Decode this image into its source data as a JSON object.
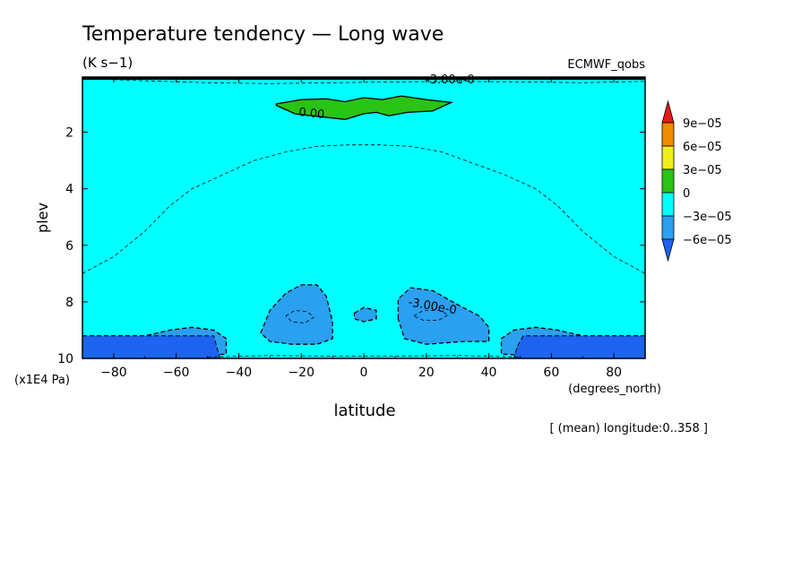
{
  "chart_data": {
    "type": "contour",
    "title": "Temperature tendency — Long wave",
    "units": "(K s−1)",
    "dataset": "ECMWF_qobs",
    "xlabel": "latitude",
    "x_units": "(degrees_north)",
    "ylabel": "plev",
    "y_units": "(x1E4 Pa)",
    "footnote": "[ (mean) longitude:0..358 ]",
    "xlim": [
      -90,
      90
    ],
    "ylim": [
      0.05,
      10
    ],
    "y_inverted": true,
    "x_ticks": [
      {
        "v": -80,
        "label": "−80"
      },
      {
        "v": -60,
        "label": "−60"
      },
      {
        "v": -40,
        "label": "−40"
      },
      {
        "v": -20,
        "label": "−20"
      },
      {
        "v": 0,
        "label": "0"
      },
      {
        "v": 20,
        "label": "20"
      },
      {
        "v": 40,
        "label": "40"
      },
      {
        "v": 60,
        "label": "60"
      },
      {
        "v": 80,
        "label": "80"
      }
    ],
    "y_ticks": [
      {
        "v": 2,
        "label": "2"
      },
      {
        "v": 4,
        "label": "4"
      },
      {
        "v": 6,
        "label": "6"
      },
      {
        "v": 8,
        "label": "8"
      },
      {
        "v": 10,
        "label": "10"
      }
    ],
    "colorbar": {
      "levels": [
        {
          "label": "9e−05",
          "value": 9e-05
        },
        {
          "label": "6e−05",
          "value": 6e-05
        },
        {
          "label": "3e−05",
          "value": 3e-05
        },
        {
          "label": "0",
          "value": 0
        },
        {
          "label": "−3e−05",
          "value": -3e-05
        },
        {
          "label": "−6e−05",
          "value": -6e-05
        }
      ],
      "colors": {
        "above_9e-05": "#e8191c",
        "6e-05_to_9e-05": "#f08c00",
        "3e-05_to_6e-05": "#f0ee1a",
        "0_to_3e-05": "#29c416",
        "-3e-05_to_0": "#00ffff",
        "-6e-05_to_-3e-05": "#2aa0f0",
        "below_-6e-05": "#1e64f0"
      }
    },
    "contour_labels": [
      "-3.00e-0",
      "0.00",
      "-3.00e-0"
    ],
    "regions": [
      {
        "level": "0_to_3e-05",
        "points": [
          [
            -28,
            1.0
          ],
          [
            -20,
            0.85
          ],
          [
            -12,
            0.82
          ],
          [
            -6,
            0.92
          ],
          [
            0,
            0.78
          ],
          [
            6,
            0.85
          ],
          [
            12,
            0.72
          ],
          [
            20,
            0.85
          ],
          [
            28,
            0.95
          ],
          [
            22,
            1.25
          ],
          [
            14,
            1.3
          ],
          [
            8,
            1.42
          ],
          [
            4,
            1.3
          ],
          [
            0,
            1.35
          ],
          [
            -6,
            1.55
          ],
          [
            -14,
            1.45
          ],
          [
            -22,
            1.35
          ],
          [
            -28,
            1.05
          ]
        ]
      },
      {
        "level": "-6e-05_to_-3e-05",
        "points": [
          [
            -33,
            9.1
          ],
          [
            -30,
            8.3
          ],
          [
            -25,
            7.7
          ],
          [
            -20,
            7.4
          ],
          [
            -15,
            7.4
          ],
          [
            -12,
            7.8
          ],
          [
            -10,
            8.7
          ],
          [
            -10,
            9.3
          ],
          [
            -15,
            9.5
          ],
          [
            -23,
            9.5
          ],
          [
            -30,
            9.4
          ]
        ]
      },
      {
        "level": "-6e-05_to_-3e-05",
        "points": [
          [
            11,
            8.6
          ],
          [
            11,
            7.9
          ],
          [
            15,
            7.5
          ],
          [
            22,
            7.6
          ],
          [
            30,
            8.1
          ],
          [
            37,
            8.5
          ],
          [
            40,
            8.9
          ],
          [
            40,
            9.4
          ],
          [
            32,
            9.4
          ],
          [
            20,
            9.5
          ],
          [
            13,
            9.3
          ]
        ]
      },
      {
        "level": "-6e-05_to_-3e-05",
        "points": [
          [
            -3,
            8.4
          ],
          [
            0,
            8.2
          ],
          [
            4,
            8.3
          ],
          [
            4,
            8.6
          ],
          [
            0,
            8.7
          ],
          [
            -3,
            8.6
          ]
        ]
      },
      {
        "level": "-6e-05_to_-3e-05",
        "points": [
          [
            -90,
            9.2
          ],
          [
            -70,
            9.2
          ],
          [
            -62,
            9.0
          ],
          [
            -55,
            8.9
          ],
          [
            -48,
            9.0
          ],
          [
            -44,
            9.3
          ],
          [
            -44,
            9.85
          ],
          [
            -57,
            9.9
          ],
          [
            -90,
            9.9
          ]
        ]
      },
      {
        "level": "-6e-05_to_-3e-05",
        "points": [
          [
            90,
            9.2
          ],
          [
            70,
            9.2
          ],
          [
            62,
            9.0
          ],
          [
            55,
            8.9
          ],
          [
            48,
            9.0
          ],
          [
            44,
            9.3
          ],
          [
            44,
            9.85
          ],
          [
            57,
            9.9
          ],
          [
            90,
            9.9
          ]
        ]
      },
      {
        "level": "below_-6e-05",
        "points": [
          [
            -90,
            9.2
          ],
          [
            -48,
            9.2
          ],
          [
            -47,
            9.6
          ],
          [
            -46,
            10
          ],
          [
            -90,
            10
          ]
        ]
      },
      {
        "level": "below_-6e-05",
        "points": [
          [
            90,
            9.2
          ],
          [
            51,
            9.2
          ],
          [
            49,
            9.6
          ],
          [
            48,
            10
          ],
          [
            90,
            10
          ]
        ]
      }
    ],
    "dashed_contours": [
      [
        [
          -90,
          7.0
        ],
        [
          -80,
          6.4
        ],
        [
          -70,
          5.5
        ],
        [
          -62,
          4.6
        ],
        [
          -55,
          4.0
        ],
        [
          -45,
          3.5
        ],
        [
          -35,
          3.0
        ],
        [
          -25,
          2.7
        ],
        [
          -15,
          2.5
        ],
        [
          -5,
          2.45
        ],
        [
          5,
          2.45
        ],
        [
          15,
          2.5
        ],
        [
          25,
          2.7
        ],
        [
          35,
          3.1
        ],
        [
          45,
          3.5
        ],
        [
          55,
          4.0
        ],
        [
          62,
          4.6
        ],
        [
          70,
          5.5
        ],
        [
          80,
          6.4
        ],
        [
          90,
          7.0
        ]
      ],
      [
        [
          -90,
          0.1
        ],
        [
          -70,
          0.18
        ],
        [
          -50,
          0.25
        ],
        [
          -30,
          0.28
        ],
        [
          -10,
          0.25
        ],
        [
          10,
          0.22
        ],
        [
          30,
          0.2
        ],
        [
          50,
          0.22
        ],
        [
          70,
          0.25
        ],
        [
          90,
          0.2
        ]
      ],
      [
        [
          -25,
          8.5
        ],
        [
          -22,
          8.3
        ],
        [
          -18,
          8.35
        ],
        [
          -16,
          8.55
        ],
        [
          -19,
          8.75
        ],
        [
          -23,
          8.7
        ],
        [
          -25,
          8.5
        ]
      ],
      [
        [
          16,
          8.5
        ],
        [
          19,
          8.3
        ],
        [
          24,
          8.3
        ],
        [
          27,
          8.45
        ],
        [
          24,
          8.65
        ],
        [
          19,
          8.65
        ],
        [
          16,
          8.5
        ]
      ],
      [
        [
          -50,
          9.95
        ],
        [
          -30,
          9.9
        ],
        [
          -10,
          9.92
        ],
        [
          10,
          9.92
        ],
        [
          30,
          9.9
        ],
        [
          50,
          9.95
        ]
      ]
    ]
  }
}
